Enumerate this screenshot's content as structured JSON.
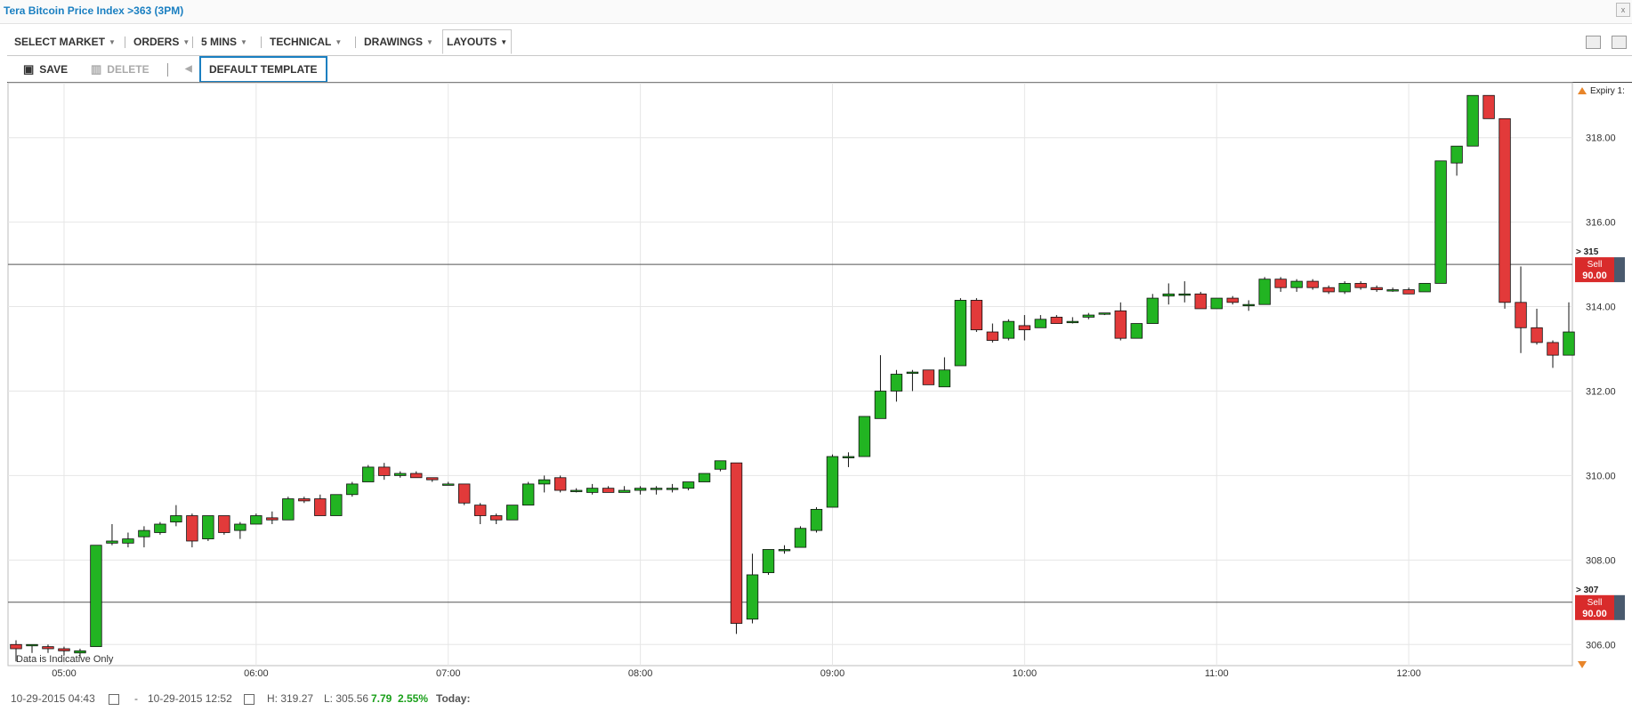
{
  "window": {
    "title": "Tera Bitcoin Price Index >363 (3PM)",
    "close_label": "x"
  },
  "menu": [
    {
      "label": "SELECT MARKET"
    },
    {
      "label": "ORDERS"
    },
    {
      "label": "5 MINS"
    },
    {
      "label": "TECHNICAL"
    },
    {
      "label": "DRAWINGS"
    },
    {
      "label": "LAYOUTS"
    }
  ],
  "toolbar": {
    "save_label": "SAVE",
    "delete_label": "DELETE",
    "template_label": "DEFAULT TEMPLATE"
  },
  "footer": {
    "from": "10-29-2015 04:43",
    "dash": "-",
    "to": "10-29-2015 12:52",
    "high": "H: 319.27",
    "low": "L: 305.56",
    "change": "7.79",
    "change_pct": "2.55%",
    "today_label": "Today:"
  },
  "colors": {
    "up": "#22b422",
    "down": "#e23a3a",
    "sell_bg": "#d92b2b",
    "expiry_marker": "#e8852a",
    "link": "#1a7fc1"
  },
  "chart_data": {
    "type": "candlestick",
    "watermark": "Data is Indicative Only",
    "expiry_label": "Expiry 1:",
    "ylim": [
      305.5,
      319.3
    ],
    "yticks": [
      306,
      308,
      310,
      312,
      314,
      316,
      318
    ],
    "ytick_labels": [
      "306.00",
      "308.00",
      "310.00",
      "312.00",
      "314.00",
      "316.00",
      "318.00"
    ],
    "xtick_labels": [
      "05:00",
      "06:00",
      "07:00",
      "08:00",
      "09:00",
      "10:00",
      "11:00",
      "12:00"
    ],
    "xtick_indices": [
      3,
      15,
      27,
      39,
      51,
      63,
      75,
      87
    ],
    "levels": [
      {
        "label": "> 315",
        "value": 315.0,
        "action": "Sell",
        "price": "90.00"
      },
      {
        "label": "> 307",
        "value": 307.0,
        "action": "Sell",
        "price": "90.00"
      }
    ],
    "candles": [
      [
        306.0,
        306.1,
        305.6,
        305.9
      ],
      [
        306.0,
        306.0,
        305.8,
        306.0
      ],
      [
        305.95,
        306.0,
        305.8,
        305.9
      ],
      [
        305.9,
        305.95,
        305.75,
        305.85
      ],
      [
        305.8,
        305.9,
        305.7,
        305.85
      ],
      [
        305.95,
        308.35,
        305.95,
        308.35
      ],
      [
        308.4,
        308.85,
        308.35,
        308.45
      ],
      [
        308.4,
        308.65,
        308.3,
        308.5
      ],
      [
        308.55,
        308.8,
        308.3,
        308.7
      ],
      [
        308.65,
        308.9,
        308.6,
        308.85
      ],
      [
        308.9,
        309.3,
        308.8,
        309.05
      ],
      [
        309.05,
        309.1,
        308.3,
        308.45
      ],
      [
        308.5,
        309.05,
        308.45,
        309.05
      ],
      [
        309.05,
        309.05,
        308.6,
        308.65
      ],
      [
        308.7,
        308.9,
        308.5,
        308.85
      ],
      [
        308.85,
        309.1,
        308.85,
        309.05
      ],
      [
        309.0,
        309.15,
        308.85,
        308.95
      ],
      [
        308.95,
        309.5,
        308.95,
        309.45
      ],
      [
        309.45,
        309.5,
        309.35,
        309.4
      ],
      [
        309.45,
        309.55,
        309.05,
        309.05
      ],
      [
        309.05,
        309.55,
        309.05,
        309.55
      ],
      [
        309.55,
        309.85,
        309.5,
        309.8
      ],
      [
        309.85,
        310.25,
        309.85,
        310.2
      ],
      [
        310.2,
        310.3,
        309.9,
        310.0
      ],
      [
        310.0,
        310.1,
        309.95,
        310.05
      ],
      [
        310.05,
        310.1,
        309.95,
        309.95
      ],
      [
        309.95,
        309.95,
        309.85,
        309.9
      ],
      [
        309.8,
        309.85,
        309.8,
        309.8
      ],
      [
        309.8,
        309.8,
        309.3,
        309.35
      ],
      [
        309.3,
        309.35,
        308.85,
        309.05
      ],
      [
        309.05,
        309.1,
        308.85,
        308.95
      ],
      [
        308.95,
        309.3,
        308.95,
        309.3
      ],
      [
        309.3,
        309.85,
        309.3,
        309.8
      ],
      [
        309.8,
        310.0,
        309.6,
        309.9
      ],
      [
        309.95,
        310.0,
        309.6,
        309.65
      ],
      [
        309.65,
        309.7,
        309.6,
        309.65
      ],
      [
        309.6,
        309.8,
        309.55,
        309.7
      ],
      [
        309.7,
        309.75,
        309.6,
        309.6
      ],
      [
        309.6,
        309.75,
        309.6,
        309.65
      ],
      [
        309.65,
        309.75,
        309.55,
        309.7
      ],
      [
        309.7,
        309.75,
        309.55,
        309.7
      ],
      [
        309.7,
        309.8,
        309.6,
        309.7
      ],
      [
        309.7,
        309.85,
        309.65,
        309.85
      ],
      [
        309.85,
        310.05,
        309.85,
        310.05
      ],
      [
        310.15,
        310.35,
        310.1,
        310.35
      ],
      [
        310.3,
        310.3,
        306.25,
        306.5
      ],
      [
        306.6,
        308.15,
        306.5,
        307.65
      ],
      [
        307.7,
        308.25,
        307.65,
        308.25
      ],
      [
        308.25,
        308.35,
        308.15,
        308.25
      ],
      [
        308.3,
        308.8,
        308.3,
        308.75
      ],
      [
        308.7,
        309.25,
        308.65,
        309.2
      ],
      [
        309.25,
        310.5,
        309.25,
        310.45
      ],
      [
        310.45,
        310.55,
        310.2,
        310.45
      ],
      [
        310.45,
        311.4,
        310.45,
        311.4
      ],
      [
        311.35,
        312.85,
        311.35,
        312.0
      ],
      [
        312.0,
        312.5,
        311.75,
        312.4
      ],
      [
        312.45,
        312.5,
        312.0,
        312.45
      ],
      [
        312.5,
        312.5,
        312.15,
        312.15
      ],
      [
        312.1,
        312.8,
        312.1,
        312.5
      ],
      [
        312.6,
        314.2,
        312.6,
        314.15
      ],
      [
        314.15,
        314.2,
        313.4,
        313.45
      ],
      [
        313.4,
        313.6,
        313.15,
        313.2
      ],
      [
        313.25,
        313.7,
        313.2,
        313.65
      ],
      [
        313.55,
        313.8,
        313.2,
        313.45
      ],
      [
        313.5,
        313.8,
        313.5,
        313.7
      ],
      [
        313.75,
        313.8,
        313.65,
        313.6
      ],
      [
        313.65,
        313.75,
        313.6,
        313.65
      ],
      [
        313.75,
        313.85,
        313.7,
        313.8
      ],
      [
        313.85,
        313.85,
        313.8,
        313.85
      ],
      [
        313.9,
        314.1,
        313.2,
        313.25
      ],
      [
        313.25,
        313.6,
        313.25,
        313.6
      ],
      [
        313.6,
        314.3,
        313.6,
        314.2
      ],
      [
        314.25,
        314.55,
        314.05,
        314.3
      ],
      [
        314.3,
        314.6,
        314.1,
        314.3
      ],
      [
        314.3,
        314.35,
        313.95,
        313.95
      ],
      [
        313.95,
        314.2,
        313.95,
        314.2
      ],
      [
        314.2,
        314.25,
        314.05,
        314.1
      ],
      [
        314.05,
        314.15,
        313.9,
        314.05
      ],
      [
        314.05,
        314.7,
        314.05,
        314.65
      ],
      [
        314.65,
        314.7,
        314.35,
        314.45
      ],
      [
        314.45,
        314.65,
        314.35,
        314.6
      ],
      [
        314.6,
        314.65,
        314.4,
        314.45
      ],
      [
        314.45,
        314.5,
        314.3,
        314.35
      ],
      [
        314.35,
        314.6,
        314.3,
        314.55
      ],
      [
        314.55,
        314.6,
        314.4,
        314.45
      ],
      [
        314.45,
        314.5,
        314.35,
        314.4
      ],
      [
        314.4,
        314.45,
        314.35,
        314.4
      ],
      [
        314.4,
        314.45,
        314.3,
        314.3
      ],
      [
        314.35,
        314.55,
        314.35,
        314.55
      ],
      [
        314.55,
        317.45,
        314.55,
        317.45
      ],
      [
        317.4,
        317.8,
        317.1,
        317.8
      ],
      [
        317.8,
        319.0,
        317.8,
        319.0
      ],
      [
        319.0,
        319.0,
        318.45,
        318.45
      ],
      [
        318.45,
        318.45,
        313.95,
        314.1
      ],
      [
        314.1,
        314.95,
        312.9,
        313.5
      ],
      [
        313.5,
        313.95,
        313.1,
        313.15
      ],
      [
        313.15,
        313.2,
        312.55,
        312.85
      ],
      [
        312.85,
        314.1,
        312.85,
        313.4
      ]
    ]
  }
}
